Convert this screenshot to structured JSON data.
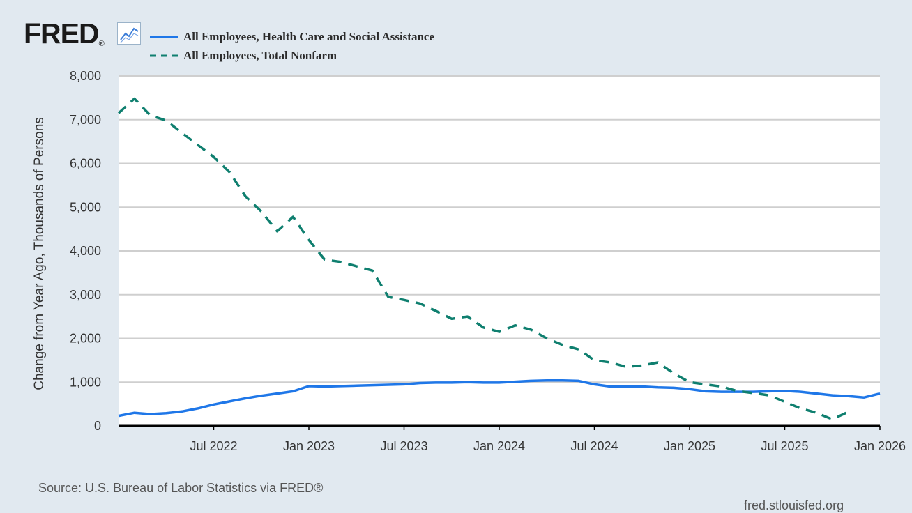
{
  "header": {
    "logo_text": "FRED",
    "logo_mark": "®",
    "logo_icon": "line-chart-icon"
  },
  "colors": {
    "background": "#e1e9f0",
    "plot_background": "#ffffff",
    "grid": "#cfcfcf",
    "health_series": "#1f77e8",
    "nonfarm_series": "#0f7f6f"
  },
  "footer": {
    "source": "Source: U.S. Bureau of Labor Statistics via FRED®",
    "credit": "fred.stlouisfed.org"
  },
  "chart_data": {
    "type": "line",
    "title": "",
    "xlabel": "",
    "ylabel": "Change from Year Ago, Thousands of Persons",
    "ylim": [
      0,
      8000
    ],
    "yticks": [
      0,
      1000,
      2000,
      3000,
      4000,
      5000,
      6000,
      7000,
      8000
    ],
    "ytick_labels": [
      "0",
      "1,000",
      "2,000",
      "3,000",
      "4,000",
      "5,000",
      "6,000",
      "7,000",
      "8,000"
    ],
    "xlim": [
      "2022-01",
      "2026-01"
    ],
    "xticks": [
      "2022-07",
      "2023-01",
      "2023-07",
      "2024-01",
      "2024-07",
      "2025-01",
      "2025-07",
      "2026-01"
    ],
    "xtick_labels": [
      "Jul 2022",
      "Jan 2023",
      "Jul 2023",
      "Jan 2024",
      "Jul 2024",
      "Jan 2025",
      "Jul 2025",
      "Jan 2026"
    ],
    "grid": true,
    "legend_position": "top-left",
    "x": [
      "2022-01",
      "2022-02",
      "2022-03",
      "2022-04",
      "2022-05",
      "2022-06",
      "2022-07",
      "2022-08",
      "2022-09",
      "2022-10",
      "2022-11",
      "2022-12",
      "2023-01",
      "2023-02",
      "2023-03",
      "2023-04",
      "2023-05",
      "2023-06",
      "2023-07",
      "2023-08",
      "2023-09",
      "2023-10",
      "2023-11",
      "2023-12",
      "2024-01",
      "2024-02",
      "2024-03",
      "2024-04",
      "2024-05",
      "2024-06",
      "2024-07",
      "2024-08",
      "2024-09",
      "2024-10",
      "2024-11",
      "2024-12",
      "2025-01",
      "2025-02",
      "2025-03",
      "2025-04",
      "2025-05",
      "2025-06",
      "2025-07",
      "2025-08",
      "2025-09",
      "2025-10",
      "2025-11",
      "2025-12",
      "2026-01"
    ],
    "series": [
      {
        "name": "All Employees, Health Care and Social Assistance",
        "style": "solid",
        "values": [
          230,
          300,
          270,
          290,
          330,
          400,
          490,
          560,
          630,
          690,
          740,
          790,
          910,
          900,
          910,
          920,
          930,
          940,
          950,
          980,
          990,
          990,
          1000,
          990,
          990,
          1010,
          1030,
          1040,
          1040,
          1030,
          950,
          900,
          900,
          900,
          880,
          870,
          840,
          790,
          780,
          780,
          780,
          790,
          800,
          780,
          740,
          700,
          680,
          650,
          740
        ]
      },
      {
        "name": "All Employees, Total Nonfarm",
        "style": "dashed",
        "values": [
          7150,
          7480,
          7100,
          6980,
          6700,
          6420,
          6150,
          5800,
          5250,
          4900,
          4450,
          4780,
          4250,
          3800,
          3750,
          3650,
          3550,
          2950,
          2880,
          2800,
          2630,
          2450,
          2500,
          2250,
          2150,
          2300,
          2200,
          2000,
          1850,
          1750,
          1500,
          1450,
          1350,
          1380,
          1450,
          1200,
          1000,
          950,
          900,
          800,
          750,
          700,
          550,
          400,
          300,
          150,
          320,
          null,
          null
        ]
      }
    ]
  }
}
